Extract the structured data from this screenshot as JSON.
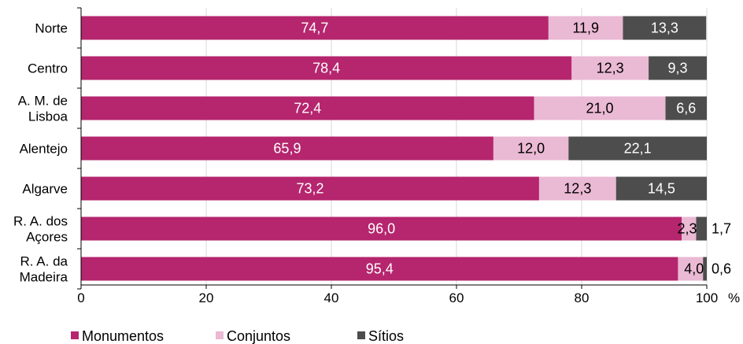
{
  "chart_data": {
    "type": "bar",
    "orientation": "horizontal",
    "stacked": true,
    "categories": [
      [
        "Norte"
      ],
      [
        "Centro"
      ],
      [
        "A. M. de",
        "Lisboa"
      ],
      [
        "Alentejo"
      ],
      [
        "Algarve"
      ],
      [
        "R. A. dos",
        "Açores"
      ],
      [
        "R. A. da",
        "Madeira"
      ]
    ],
    "series": [
      {
        "name": "Monumentos",
        "color": "#b5266e",
        "values": [
          74.7,
          78.4,
          72.4,
          65.9,
          73.2,
          96.0,
          95.4
        ],
        "labels": [
          "74,7",
          "78,4",
          "72,4",
          "65,9",
          "73,2",
          "96,0",
          "95,4"
        ]
      },
      {
        "name": "Conjuntos",
        "color": "#eab9d3",
        "values": [
          11.9,
          12.3,
          21.0,
          12.0,
          12.3,
          2.3,
          4.0
        ],
        "labels": [
          "11,9",
          "12,3",
          "21,0",
          "12,0",
          "12,3",
          "2,3",
          "4,0"
        ]
      },
      {
        "name": "Sítios",
        "color": "#4d4d4d",
        "values": [
          13.3,
          9.3,
          6.6,
          22.1,
          14.5,
          1.7,
          0.6
        ],
        "labels": [
          "13,3",
          "9,3",
          "6,6",
          "22,1",
          "14,5",
          "1,7",
          "0,6"
        ]
      }
    ],
    "xlim": [
      0,
      100
    ],
    "xticks": [
      "0",
      "20",
      "40",
      "60",
      "80",
      "100"
    ],
    "xunit": "%",
    "grid": true,
    "legend": "bottom"
  }
}
